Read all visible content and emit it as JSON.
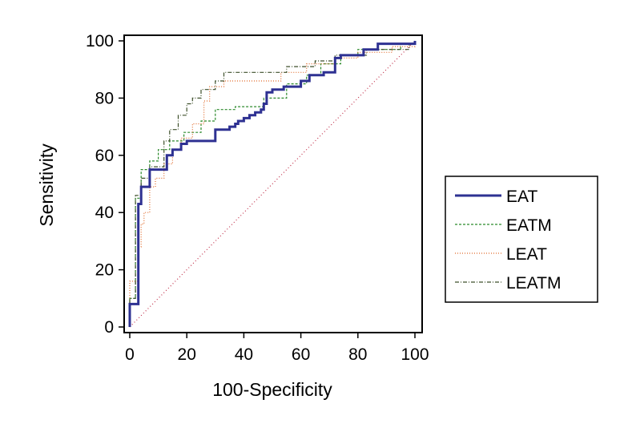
{
  "chart_data": {
    "type": "line",
    "title": "",
    "xlabel": "100-Specificity",
    "ylabel": "Sensitivity",
    "xlim": [
      0,
      100
    ],
    "ylim": [
      0,
      100
    ],
    "xticks": [
      0,
      20,
      40,
      60,
      80,
      100
    ],
    "yticks": [
      0,
      20,
      40,
      60,
      80,
      100
    ],
    "legend_position": "right",
    "grid": false,
    "series": [
      {
        "name": "EAT",
        "color": "#2e3192",
        "style": "solid",
        "points": [
          [
            0,
            0
          ],
          [
            0,
            8
          ],
          [
            3,
            8
          ],
          [
            3,
            43
          ],
          [
            4,
            43
          ],
          [
            4,
            49
          ],
          [
            7,
            49
          ],
          [
            7,
            55
          ],
          [
            13,
            55
          ],
          [
            13,
            60
          ],
          [
            15,
            60
          ],
          [
            15,
            62
          ],
          [
            18,
            62
          ],
          [
            18,
            64
          ],
          [
            20,
            64
          ],
          [
            20,
            65
          ],
          [
            30,
            65
          ],
          [
            30,
            69
          ],
          [
            35,
            69
          ],
          [
            35,
            70
          ],
          [
            37,
            70
          ],
          [
            37,
            71
          ],
          [
            38,
            71
          ],
          [
            38,
            72
          ],
          [
            40,
            72
          ],
          [
            40,
            73
          ],
          [
            42,
            73
          ],
          [
            42,
            74
          ],
          [
            44,
            74
          ],
          [
            44,
            75
          ],
          [
            46,
            75
          ],
          [
            46,
            76
          ],
          [
            47,
            76
          ],
          [
            47,
            78
          ],
          [
            48,
            78
          ],
          [
            48,
            82
          ],
          [
            50,
            82
          ],
          [
            50,
            83
          ],
          [
            54,
            83
          ],
          [
            54,
            84
          ],
          [
            60,
            84
          ],
          [
            60,
            86
          ],
          [
            63,
            86
          ],
          [
            63,
            88
          ],
          [
            68,
            88
          ],
          [
            68,
            89
          ],
          [
            72,
            89
          ],
          [
            72,
            94
          ],
          [
            74,
            94
          ],
          [
            74,
            95
          ],
          [
            82,
            95
          ],
          [
            82,
            97
          ],
          [
            87,
            97
          ],
          [
            87,
            99
          ],
          [
            100,
            99
          ],
          [
            100,
            100
          ]
        ]
      },
      {
        "name": "EATM",
        "color": "#2b8a2b",
        "style": "dashed",
        "points": [
          [
            0,
            0
          ],
          [
            0,
            10
          ],
          [
            2,
            10
          ],
          [
            2,
            45
          ],
          [
            4,
            45
          ],
          [
            4,
            55
          ],
          [
            7,
            55
          ],
          [
            7,
            58
          ],
          [
            10,
            58
          ],
          [
            10,
            62
          ],
          [
            14,
            62
          ],
          [
            14,
            65
          ],
          [
            19,
            65
          ],
          [
            19,
            68
          ],
          [
            25,
            68
          ],
          [
            25,
            72
          ],
          [
            30,
            72
          ],
          [
            30,
            76
          ],
          [
            37,
            76
          ],
          [
            37,
            77
          ],
          [
            47,
            77
          ],
          [
            47,
            80
          ],
          [
            55,
            80
          ],
          [
            55,
            85
          ],
          [
            62,
            85
          ],
          [
            62,
            88
          ],
          [
            67,
            88
          ],
          [
            67,
            92
          ],
          [
            74,
            92
          ],
          [
            74,
            95
          ],
          [
            80,
            95
          ],
          [
            80,
            97
          ],
          [
            95,
            97
          ],
          [
            95,
            99
          ],
          [
            100,
            99
          ],
          [
            100,
            100
          ]
        ]
      },
      {
        "name": "LEAT",
        "color": "#e06a2a",
        "style": "dotted",
        "points": [
          [
            0,
            0
          ],
          [
            0,
            16
          ],
          [
            3,
            16
          ],
          [
            3,
            28
          ],
          [
            4,
            28
          ],
          [
            4,
            36
          ],
          [
            5,
            36
          ],
          [
            5,
            40
          ],
          [
            7,
            40
          ],
          [
            7,
            49
          ],
          [
            9,
            49
          ],
          [
            9,
            52
          ],
          [
            12,
            52
          ],
          [
            12,
            57
          ],
          [
            15,
            57
          ],
          [
            15,
            62
          ],
          [
            18,
            62
          ],
          [
            18,
            66
          ],
          [
            22,
            66
          ],
          [
            22,
            71
          ],
          [
            26,
            71
          ],
          [
            26,
            79
          ],
          [
            28,
            79
          ],
          [
            28,
            84
          ],
          [
            33,
            84
          ],
          [
            33,
            86
          ],
          [
            53,
            86
          ],
          [
            53,
            89
          ],
          [
            62,
            89
          ],
          [
            62,
            92
          ],
          [
            72,
            92
          ],
          [
            72,
            94
          ],
          [
            80,
            94
          ],
          [
            80,
            96
          ],
          [
            92,
            96
          ],
          [
            92,
            98
          ],
          [
            100,
            98
          ],
          [
            100,
            100
          ]
        ]
      },
      {
        "name": "LEATM",
        "color": "#3d4f2a",
        "style": "dashdot",
        "points": [
          [
            0,
            0
          ],
          [
            0,
            10
          ],
          [
            2,
            10
          ],
          [
            2,
            46
          ],
          [
            4,
            46
          ],
          [
            4,
            52
          ],
          [
            7,
            52
          ],
          [
            7,
            56
          ],
          [
            12,
            56
          ],
          [
            12,
            65
          ],
          [
            14,
            65
          ],
          [
            14,
            69
          ],
          [
            17,
            69
          ],
          [
            17,
            74
          ],
          [
            20,
            74
          ],
          [
            20,
            78
          ],
          [
            22,
            78
          ],
          [
            22,
            80
          ],
          [
            25,
            80
          ],
          [
            25,
            83
          ],
          [
            30,
            83
          ],
          [
            30,
            86
          ],
          [
            33,
            86
          ],
          [
            33,
            89
          ],
          [
            55,
            89
          ],
          [
            55,
            91
          ],
          [
            65,
            91
          ],
          [
            65,
            93
          ],
          [
            72,
            93
          ],
          [
            72,
            95
          ],
          [
            83,
            95
          ],
          [
            83,
            97
          ],
          [
            98,
            97
          ],
          [
            98,
            99
          ],
          [
            100,
            99
          ],
          [
            100,
            100
          ]
        ]
      },
      {
        "name": "",
        "color": "#c0304a",
        "style": "reference",
        "points": [
          [
            0,
            0
          ],
          [
            100,
            100
          ]
        ]
      }
    ]
  }
}
